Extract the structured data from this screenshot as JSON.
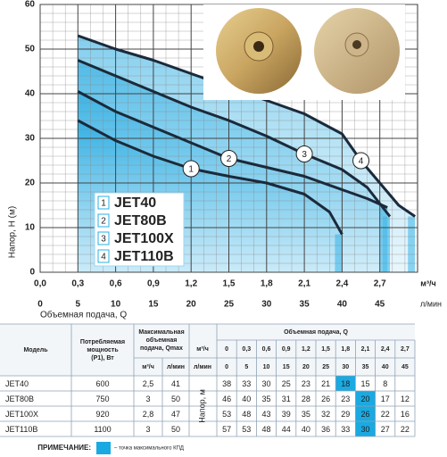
{
  "chart_data": {
    "type": "line",
    "y_label": "Напор, H (м)",
    "x_label": "Объемная подача, Q",
    "x_unit": "м³/ч",
    "x2_unit": "л/мин",
    "xlim": [
      0,
      3
    ],
    "xticks": [
      {
        "value": 0,
        "label": "0,0"
      },
      {
        "value": 0.3,
        "label": "0,3"
      },
      {
        "value": 0.6,
        "label": "0,6"
      },
      {
        "value": 0.9,
        "label": "0,9"
      },
      {
        "value": 1.2,
        "label": "1,2"
      },
      {
        "value": 1.5,
        "label": "1,5"
      },
      {
        "value": 1.8,
        "label": "1,8"
      },
      {
        "value": 2.1,
        "label": "2,1"
      },
      {
        "value": 2.4,
        "label": "2,4"
      },
      {
        "value": 2.7,
        "label": "2,7"
      }
    ],
    "x2lim": [
      0,
      50
    ],
    "x2ticks": [
      0,
      5,
      10,
      15,
      20,
      25,
      30,
      35,
      40,
      45
    ],
    "ylim": [
      0,
      60
    ],
    "yticks": [
      0,
      10,
      20,
      30,
      40,
      50,
      60
    ],
    "grid": true,
    "fill_color": "#29b0e6",
    "series": [
      {
        "name": "JET40",
        "label": "1",
        "color": "#1b2a3b",
        "x": [
          0.3,
          0.6,
          0.9,
          1.2,
          1.5,
          1.8,
          2.1,
          2.3,
          2.4
        ],
        "values": [
          34,
          29.5,
          26,
          23.2,
          21.5,
          20,
          17.5,
          13.5,
          8.5
        ]
      },
      {
        "name": "JET80B",
        "label": "2",
        "color": "#1b2a3b",
        "x": [
          0.3,
          0.6,
          0.9,
          1.2,
          1.5,
          1.8,
          2.1,
          2.4,
          2.6,
          2.76
        ],
        "values": [
          40.5,
          36,
          32.5,
          29,
          25.5,
          23.5,
          21.5,
          18.5,
          16.5,
          14.5
        ]
      },
      {
        "name": "JET100X",
        "label": "3",
        "color": "#1b2a3b",
        "x": [
          0.3,
          0.6,
          0.9,
          1.2,
          1.5,
          1.8,
          2.1,
          2.4,
          2.6,
          2.78
        ],
        "values": [
          47.5,
          44,
          40.5,
          37,
          34,
          30.5,
          26.5,
          23,
          19,
          12.5
        ]
      },
      {
        "name": "JET110B",
        "label": "4",
        "color": "#1b2a3b",
        "x": [
          0.3,
          0.6,
          0.9,
          1.2,
          1.5,
          1.8,
          2.1,
          2.4,
          2.55,
          2.7,
          2.85,
          2.98
        ],
        "values": [
          53,
          50,
          47.5,
          44.5,
          41.5,
          38.5,
          35.5,
          31,
          25,
          20,
          15,
          12.5
        ]
      }
    ]
  },
  "table": {
    "headers": {
      "model": "Модель",
      "power": [
        "Потребляемая",
        "мощность",
        "(P1), Вт"
      ],
      "qmax": [
        "Максимальная",
        "объемная",
        "подача, Qmax"
      ],
      "qmax_m3": "м³/ч",
      "qmax_l": "л/мин",
      "flow": "Объемная подача, Q",
      "flow_m3": "м³/ч",
      "flow_l": "л/мин",
      "head": "Напор, м"
    },
    "q_m3": [
      "0",
      "0,3",
      "0,6",
      "0,9",
      "1,2",
      "1,5",
      "1,8",
      "2,1",
      "2,4",
      "2,7"
    ],
    "q_l": [
      0,
      5,
      10,
      15,
      20,
      25,
      30,
      35,
      40,
      45
    ],
    "highlight_color": "#1ba9e1",
    "rows": [
      {
        "model": "JET40",
        "power": 600,
        "qmax_m3": "2,5",
        "qmax_l": 41,
        "heads": [
          38,
          33,
          30,
          25,
          23,
          21,
          18,
          15,
          8,
          null
        ],
        "max_efficiency": 6
      },
      {
        "model": "JET80B",
        "power": 750,
        "qmax_m3": "3",
        "qmax_l": 50,
        "heads": [
          46,
          40,
          35,
          31,
          28,
          26,
          23,
          20,
          17,
          12
        ],
        "max_efficiency": 7
      },
      {
        "model": "JET100X",
        "power": 920,
        "qmax_m3": "2,8",
        "qmax_l": 47,
        "heads": [
          53,
          48,
          43,
          39,
          35,
          32,
          29,
          26,
          22,
          16
        ],
        "max_efficiency": 7
      },
      {
        "model": "JET110B",
        "power": 1100,
        "qmax_m3": "3",
        "qmax_l": 50,
        "heads": [
          57,
          53,
          48,
          44,
          40,
          36,
          33,
          30,
          27,
          22
        ],
        "max_efficiency": 7
      }
    ]
  },
  "note": {
    "label": "ПРИМЕЧАНИЕ:",
    "text": "– точка максимального КПД"
  }
}
